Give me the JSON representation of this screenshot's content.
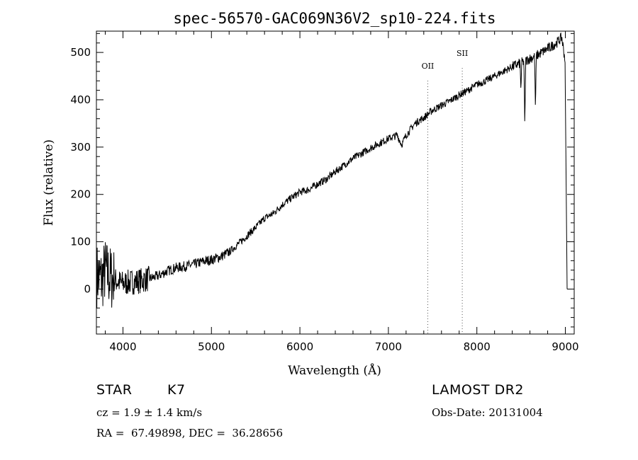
{
  "chart_data": {
    "type": "line",
    "title": "spec-56570-GAC069N36V2_sp10-224.fits",
    "xlabel": "Wavelength (Å)",
    "ylabel": "Flux (relative)",
    "xlim": [
      3700,
      9100
    ],
    "ylim": [
      -95,
      545
    ],
    "xticks": [
      4000,
      5000,
      6000,
      7000,
      8000,
      9000
    ],
    "yticks": [
      0,
      100,
      200,
      300,
      400,
      500
    ],
    "lines": [
      {
        "label": "OII",
        "x": 7445
      },
      {
        "label": "SII",
        "x": 7835
      }
    ],
    "series": [
      {
        "name": "flux",
        "points": [
          [
            3700,
            30
          ],
          [
            3760,
            20
          ],
          [
            3800,
            40
          ],
          [
            3850,
            25
          ],
          [
            3900,
            20
          ],
          [
            3950,
            15
          ],
          [
            4000,
            12
          ],
          [
            4100,
            15
          ],
          [
            4200,
            18
          ],
          [
            4300,
            22
          ],
          [
            4400,
            28
          ],
          [
            4500,
            38
          ],
          [
            4600,
            45
          ],
          [
            4700,
            48
          ],
          [
            4800,
            52
          ],
          [
            4900,
            58
          ],
          [
            5000,
            62
          ],
          [
            5100,
            68
          ],
          [
            5200,
            78
          ],
          [
            5300,
            95
          ],
          [
            5400,
            112
          ],
          [
            5500,
            130
          ],
          [
            5600,
            150
          ],
          [
            5700,
            160
          ],
          [
            5800,
            178
          ],
          [
            5900,
            192
          ],
          [
            6000,
            205
          ],
          [
            6100,
            210
          ],
          [
            6200,
            222
          ],
          [
            6300,
            232
          ],
          [
            6400,
            248
          ],
          [
            6500,
            262
          ],
          [
            6600,
            276
          ],
          [
            6700,
            287
          ],
          [
            6800,
            298
          ],
          [
            6900,
            308
          ],
          [
            7000,
            318
          ],
          [
            7100,
            325
          ],
          [
            7150,
            305
          ],
          [
            7200,
            325
          ],
          [
            7300,
            350
          ],
          [
            7400,
            362
          ],
          [
            7500,
            378
          ],
          [
            7600,
            388
          ],
          [
            7700,
            398
          ],
          [
            7800,
            410
          ],
          [
            7900,
            420
          ],
          [
            8000,
            432
          ],
          [
            8100,
            440
          ],
          [
            8200,
            450
          ],
          [
            8300,
            460
          ],
          [
            8400,
            470
          ],
          [
            8500,
            478
          ],
          [
            8600,
            487
          ],
          [
            8700,
            496
          ],
          [
            8800,
            508
          ],
          [
            8900,
            520
          ],
          [
            8960,
            532
          ],
          [
            9000,
            480
          ]
        ],
        "absorption": [
          [
            8542,
            340
          ],
          [
            8662,
            378
          ],
          [
            8498,
            420
          ]
        ],
        "end_drop": [
          9020,
          0
        ]
      }
    ]
  },
  "info": {
    "class": "STAR",
    "subclass": "K7",
    "cz": "cz = 1.9 ± 1.4 km/s",
    "coords": "RA =  67.49898, DEC =  36.28656",
    "survey": "LAMOST DR2",
    "obs_date": "Obs-Date: 20131004"
  }
}
